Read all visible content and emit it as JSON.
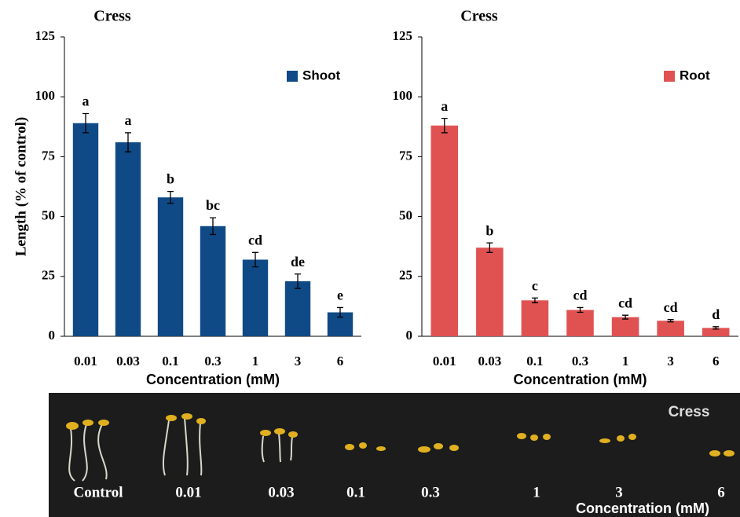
{
  "chart_data": [
    {
      "type": "bar",
      "title": "Cress",
      "y_label": "Length (% of control)",
      "x_label": "Concentration (mM)",
      "categories": [
        "0.01",
        "0.03",
        "0.1",
        "0.3",
        "1",
        "3",
        "6"
      ],
      "series": [
        {
          "name": "Shoot",
          "color": "#0f4a86",
          "values": [
            89,
            81,
            58,
            46,
            32,
            23,
            10
          ],
          "errors": [
            4,
            4,
            2.5,
            3.5,
            3,
            3,
            2
          ],
          "letters": [
            "a",
            "a",
            "b",
            "bc",
            "cd",
            "de",
            "e"
          ]
        }
      ],
      "ylim": [
        0,
        125
      ],
      "yticks": [
        0,
        25,
        50,
        75,
        100,
        125
      ],
      "legend": "upper right"
    },
    {
      "type": "bar",
      "title": "Cress",
      "x_label": "Concentration (mM)",
      "categories": [
        "0.01",
        "0.03",
        "0.1",
        "0.3",
        "1",
        "3",
        "6"
      ],
      "series": [
        {
          "name": "Root",
          "color": "#e05252",
          "values": [
            88,
            37,
            15,
            11,
            8,
            6.5,
            3.5
          ],
          "errors": [
            3,
            2,
            1,
            1,
            0.8,
            0.5,
            0.5
          ],
          "letters": [
            "a",
            "b",
            "c",
            "cd",
            "cd",
            "cd",
            "d"
          ]
        }
      ],
      "ylim": [
        0,
        125
      ],
      "yticks": [
        0,
        25,
        50,
        75,
        100,
        125
      ],
      "legend": "upper right"
    }
  ],
  "photo": {
    "title": "Cress",
    "axis_label": "Concentration (mM)",
    "labels": [
      "Control",
      "0.01",
      "0.03",
      "0.1",
      "0.3",
      "1",
      "3",
      "6"
    ]
  }
}
